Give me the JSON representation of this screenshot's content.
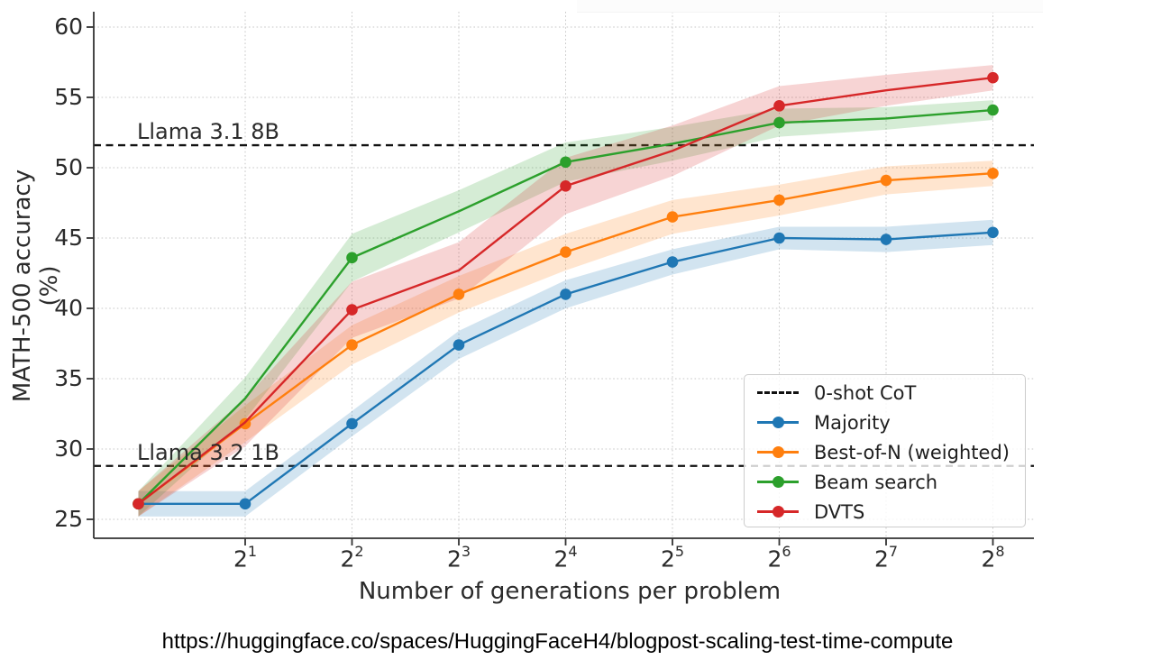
{
  "caption": {
    "url": "https://huggingface.co/spaces/HuggingFaceH4/blogpost-scaling-test-time-compute"
  },
  "chart_data": {
    "type": "line",
    "title": "",
    "xlabel": "Number of generations per problem",
    "ylabel": "MATH-500 accuracy (%)",
    "x": [
      1,
      2,
      4,
      8,
      16,
      32,
      64,
      128,
      256
    ],
    "x_log2": [
      0,
      1,
      2,
      3,
      4,
      5,
      6,
      7,
      8
    ],
    "xtick_exponents": [
      1,
      2,
      3,
      4,
      5,
      6,
      7,
      8
    ],
    "xtick_labels": [
      "2^1",
      "2^2",
      "2^3",
      "2^4",
      "2^5",
      "2^6",
      "2^7",
      "2^8"
    ],
    "yticks": [
      25,
      30,
      35,
      40,
      45,
      50,
      55,
      60
    ],
    "ylim": [
      23.6,
      61.1
    ],
    "xscale": "log2",
    "grid": true,
    "legend_position": "lower right",
    "series": [
      {
        "name": "Majority",
        "color": "#1f77b4",
        "marker_every": 1,
        "values": [
          26.1,
          26.1,
          31.8,
          37.4,
          41.0,
          43.3,
          45.0,
          44.9,
          45.4
        ],
        "band_halfwidth": [
          0.9,
          0.9,
          0.9,
          1.0,
          1.0,
          0.9,
          0.8,
          0.9,
          0.9
        ]
      },
      {
        "name": "Best-of-N (weighted)",
        "color": "#ff7f0e",
        "marker_every": 1,
        "values": [
          26.1,
          31.8,
          37.4,
          41.0,
          44.0,
          46.5,
          47.7,
          49.1,
          49.6
        ],
        "band_halfwidth": [
          0.9,
          1.3,
          1.4,
          1.3,
          1.3,
          1.2,
          1.1,
          1.0,
          0.9
        ]
      },
      {
        "name": "Beam search",
        "color": "#2ca02c",
        "marker_every": 2,
        "values": [
          26.1,
          33.6,
          43.6,
          46.9,
          50.4,
          51.7,
          53.2,
          53.5,
          54.1
        ],
        "band_halfwidth": [
          0.9,
          1.5,
          1.7,
          1.5,
          1.4,
          1.2,
          1.0,
          0.8,
          0.7
        ]
      },
      {
        "name": "DVTS",
        "color": "#d62728",
        "marker_every": 2,
        "values": [
          26.1,
          31.9,
          39.9,
          42.7,
          48.7,
          51.2,
          54.4,
          55.5,
          56.4
        ],
        "band_halfwidth": [
          0.9,
          1.7,
          2.0,
          2.0,
          2.0,
          1.8,
          1.4,
          1.1,
          0.9
        ]
      }
    ],
    "hlines": [
      {
        "label": "Llama 3.1 8B",
        "value": 51.6,
        "style": "dashed",
        "color": "#111111"
      },
      {
        "label": "Llama 3.2 1B",
        "value": 28.8,
        "style": "dashed",
        "color": "#111111"
      }
    ],
    "legend_entries": [
      {
        "label": "0-shot CoT",
        "style": "dashed",
        "color": "#111111"
      },
      {
        "label": "Majority",
        "style": "line-marker",
        "color": "#1f77b4"
      },
      {
        "label": "Best-of-N (weighted)",
        "style": "line-marker",
        "color": "#ff7f0e"
      },
      {
        "label": "Beam search",
        "style": "line-marker",
        "color": "#2ca02c"
      },
      {
        "label": "DVTS",
        "style": "line-marker",
        "color": "#d62728"
      }
    ],
    "colors": {
      "grid": "#c7c7c7",
      "spine": "#333333",
      "tick_text": "#2b2b2b"
    }
  }
}
